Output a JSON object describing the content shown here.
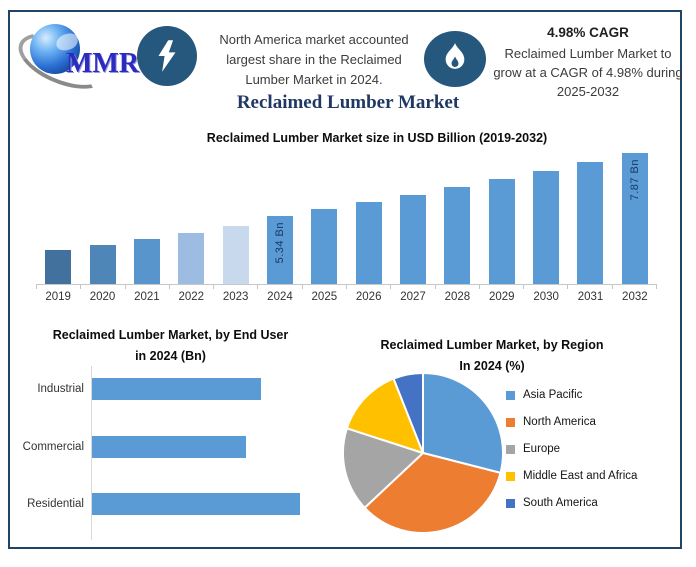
{
  "page": {
    "title": "Reclaimed Lumber Market"
  },
  "header": {
    "logo_text": "MMR",
    "logo_icon": "globe-icon",
    "note_na": {
      "lines": [
        "North America market accounted",
        "largest share in the Reclaimed",
        "Lumber Market in 2024."
      ]
    },
    "cagr": {
      "headline": "4.98% CAGR",
      "lines": [
        "Reclaimed Lumber Market to",
        "grow at a CAGR of 4.98% during",
        "2025-2032"
      ]
    }
  },
  "colors": {
    "frame_border": "#1F4468",
    "badge_background": "#26587D",
    "title_navy": "#1F3864",
    "primary_bar_blue": "#5B9BD5",
    "axis_gray": "#C6C6C6"
  },
  "chart_data": [
    {
      "type": "bar",
      "title": "Reclaimed Lumber Market size in USD Billion (2019-2032)",
      "categories": [
        "2019",
        "2020",
        "2021",
        "2022",
        "2023",
        "2024",
        "2025",
        "2026",
        "2027",
        "2028",
        "2029",
        "2030",
        "2031",
        "2032"
      ],
      "values": [
        3.96,
        4.16,
        4.4,
        4.67,
        4.95,
        5.34,
        5.61,
        5.89,
        6.18,
        6.49,
        6.81,
        7.15,
        7.51,
        7.87
      ],
      "unit": "USD Billion",
      "data_labels": {
        "2024": "5.34 Bn",
        "2032": "7.87 Bn"
      },
      "bar_colors": [
        "#41719C",
        "#4E86B8",
        "#5795CC",
        "#9CBCE2",
        "#C9D9ED",
        "#5B9BD5",
        "#5B9BD5",
        "#5B9BD5",
        "#5B9BD5",
        "#5B9BD5",
        "#5B9BD5",
        "#5B9BD5",
        "#5B9BD5",
        "#5B9BD5"
      ],
      "axis_range": [
        2.6,
        7.87
      ],
      "grid": false,
      "legend": false
    },
    {
      "type": "bar",
      "orientation": "horizontal",
      "title": "Reclaimed Lumber Market, by End User in 2024 (Bn)",
      "title_lines": [
        "Reclaimed Lumber Market, by End User",
        "in 2024 (Bn)"
      ],
      "categories": [
        "Industrial",
        "Commercial",
        "Residential"
      ],
      "values": [
        1.7,
        1.55,
        2.09
      ],
      "unit": "USD Billion",
      "bar_color": "#5B9BD5",
      "grid": false,
      "legend": false
    },
    {
      "type": "pie",
      "title": "Reclaimed Lumber Market, by Region In 2024 (%)",
      "title_lines": [
        "Reclaimed Lumber Market, by Region",
        "In 2024 (%)"
      ],
      "labels": [
        "Asia Pacific",
        "North America",
        "Europe",
        "Middle East and Africa",
        "South America"
      ],
      "values": [
        29,
        34,
        17,
        14,
        6
      ],
      "unit": "%",
      "colors": [
        "#5B9BD5",
        "#ED7D31",
        "#A5A5A5",
        "#FFC000",
        "#4472C4"
      ],
      "start_angle_deg": 0,
      "direction": "clockwise",
      "legend_position": "right"
    }
  ]
}
